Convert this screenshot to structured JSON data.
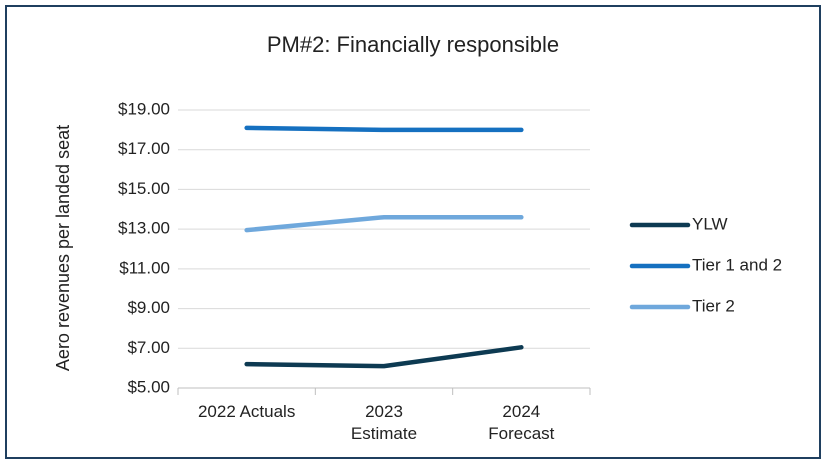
{
  "chart_data": {
    "type": "line",
    "title": "PM#2: Financially responsible",
    "y_label": "Aero revenues per landed seat",
    "categories": [
      "2022 Actuals",
      "2023\nEstimate",
      "2024\nForecast"
    ],
    "series": [
      {
        "name": "YLW",
        "color": "#0d3a52",
        "values": [
          6.2,
          6.1,
          7.05
        ]
      },
      {
        "name": "Tier 1 and 2",
        "color": "#1570c0",
        "values": [
          18.1,
          18.0,
          18.0
        ]
      },
      {
        "name": "Tier 2",
        "color": "#6fa8dc",
        "values": [
          12.95,
          13.6,
          13.6
        ]
      }
    ],
    "ylim": [
      5,
      19
    ],
    "yticks": [
      {
        "value": 5,
        "label": "$5.00"
      },
      {
        "value": 7,
        "label": "$7.00"
      },
      {
        "value": 9,
        "label": "$9.00"
      },
      {
        "value": 11,
        "label": "$11.00"
      },
      {
        "value": 13,
        "label": "$13.00"
      },
      {
        "value": 15,
        "label": "$15.00"
      },
      {
        "value": 17,
        "label": "$17.00"
      },
      {
        "value": 19,
        "label": "$19.00"
      }
    ],
    "grid": true,
    "legend": "right"
  }
}
